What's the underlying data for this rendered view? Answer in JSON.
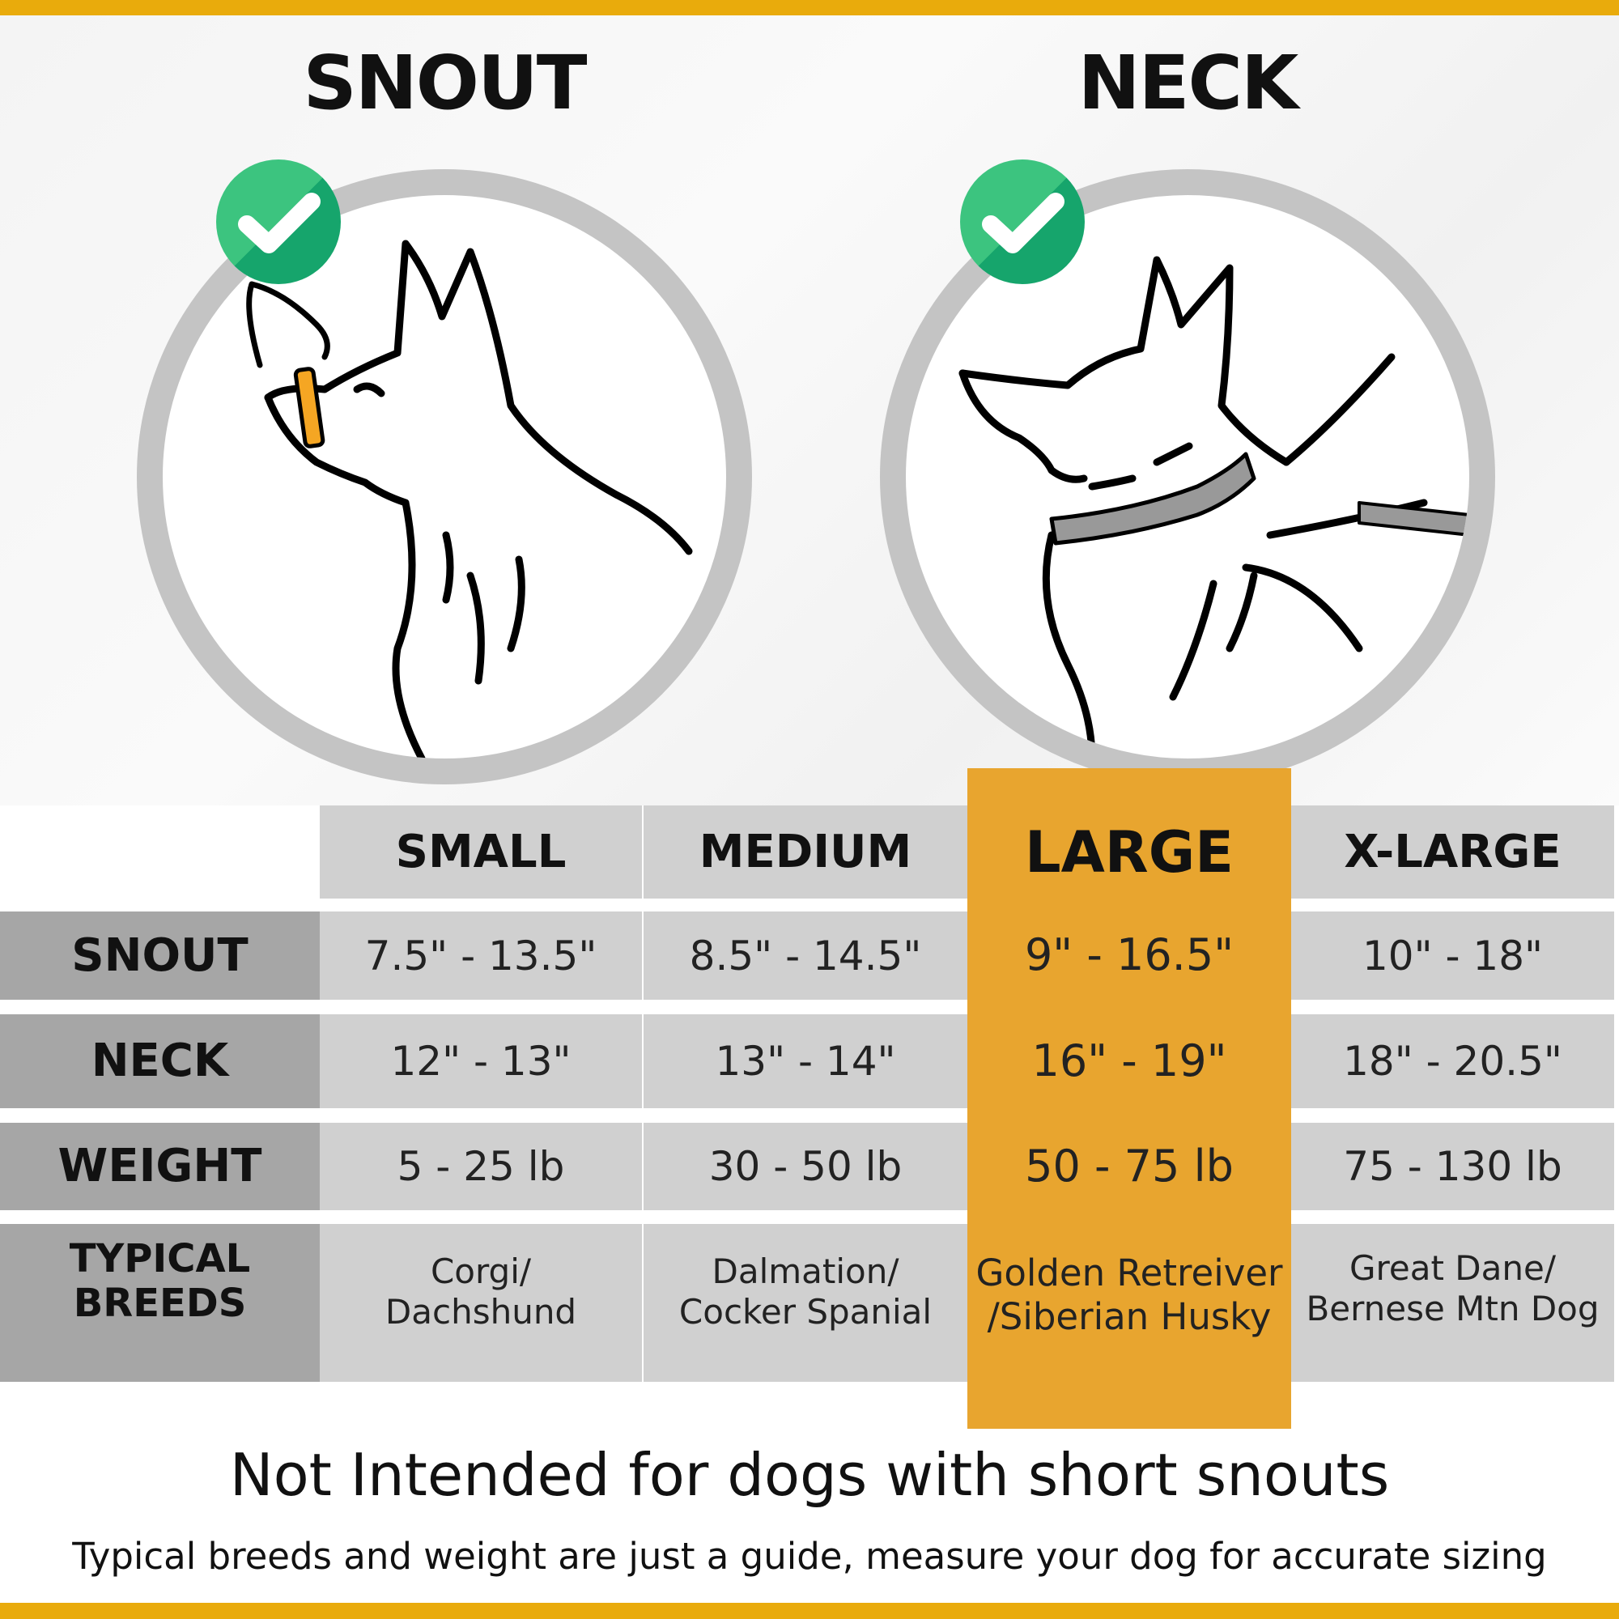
{
  "colors": {
    "accent": "#E9AB0C",
    "highlight": "#E8A52F",
    "check": "#27B574",
    "label_col": "#A6A6A6",
    "cell": "#D0D0D0"
  },
  "titles": {
    "snout": "SNOUT",
    "neck": "NECK"
  },
  "icons": {
    "check": "checkmark-circle-icon"
  },
  "table": {
    "columns": [
      "SMALL",
      "MEDIUM",
      "LARGE",
      "X-LARGE"
    ],
    "highlighted_column": "LARGE",
    "rows": [
      {
        "label": "SNOUT",
        "values": [
          "7.5\" - 13.5\"",
          "8.5\" - 14.5\"",
          "9\" - 16.5\"",
          "10\" - 18\""
        ]
      },
      {
        "label": "NECK",
        "values": [
          "12\" - 13\"",
          "13\" - 14\"",
          "16\" - 19\"",
          "18\" - 20.5\""
        ]
      },
      {
        "label": "WEIGHT",
        "values": [
          "5 - 25 lb",
          "30 - 50 lb",
          "50 - 75 lb",
          "75 - 130 lb"
        ]
      },
      {
        "label": "TYPICAL BREEDS",
        "values": [
          "Corgi/ Dachshund",
          "Dalmation/ Cocker Spanial",
          "Golden Retreiver /Siberian Husky",
          "Great Dane/ Bernese Mtn Dog"
        ]
      }
    ]
  },
  "footer": {
    "title": "Not Intended for dogs with short snouts",
    "note": "Typical breeds and weight are just a guide, measure your dog for accurate sizing"
  }
}
